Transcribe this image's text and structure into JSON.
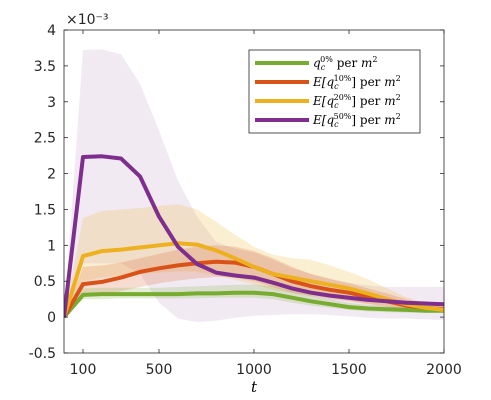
{
  "chart_data": {
    "type": "line",
    "xlabel": "t",
    "ylabel": "",
    "exponent_label": "×10⁻³",
    "xlim": [
      0,
      2000
    ],
    "ylim": [
      -0.5,
      4
    ],
    "xticks": [
      100,
      500,
      1000,
      1500,
      2000
    ],
    "yticks": [
      -0.5,
      0,
      0.5,
      1,
      1.5,
      2,
      2.5,
      3,
      3.5,
      4
    ],
    "grid": false,
    "legend_position": "top-right",
    "series": [
      {
        "name": "q_c^{0%} per m²",
        "legend_parts": [
          "q",
          "c",
          "0%",
          " per ",
          "m",
          "2"
        ],
        "color": "#77ac30",
        "x": [
          0,
          100,
          200,
          300,
          400,
          500,
          600,
          700,
          800,
          900,
          1000,
          1100,
          1200,
          1300,
          1400,
          1500,
          1600,
          1700,
          1800,
          1900,
          2000
        ],
        "y": [
          0,
          0.31,
          0.32,
          0.32,
          0.32,
          0.32,
          0.32,
          0.33,
          0.33,
          0.34,
          0.34,
          0.32,
          0.27,
          0.22,
          0.18,
          0.14,
          0.12,
          0.11,
          0.1,
          0.09,
          0.09
        ],
        "band_upper": [
          0,
          0.4,
          0.41,
          0.41,
          0.41,
          0.41,
          0.42,
          0.43,
          0.44,
          0.45,
          0.45,
          0.43,
          0.36,
          0.3,
          0.25,
          0.2,
          0.17,
          0.15,
          0.14,
          0.13,
          0.12
        ],
        "band_lower": [
          0,
          0.25,
          0.25,
          0.26,
          0.26,
          0.26,
          0.26,
          0.26,
          0.27,
          0.27,
          0.27,
          0.25,
          0.2,
          0.16,
          0.13,
          0.1,
          0.08,
          0.07,
          0.06,
          0.06,
          0.06
        ]
      },
      {
        "name": "E[q_c^{10%}] per m²",
        "legend_parts": [
          "E[q",
          "c",
          "10%",
          "] per ",
          "m",
          "2"
        ],
        "color": "#d95319",
        "x": [
          0,
          100,
          200,
          300,
          400,
          500,
          600,
          700,
          800,
          900,
          1000,
          1100,
          1200,
          1300,
          1400,
          1500,
          1600,
          1700,
          1800,
          1900,
          2000
        ],
        "y": [
          0,
          0.46,
          0.49,
          0.55,
          0.63,
          0.68,
          0.72,
          0.75,
          0.77,
          0.76,
          0.7,
          0.6,
          0.5,
          0.43,
          0.38,
          0.34,
          0.28,
          0.22,
          0.16,
          0.13,
          0.11
        ],
        "band_upper": [
          0,
          0.7,
          0.72,
          0.76,
          0.82,
          0.88,
          0.94,
          0.98,
          1.0,
          0.98,
          0.92,
          0.82,
          0.7,
          0.6,
          0.53,
          0.47,
          0.4,
          0.33,
          0.25,
          0.2,
          0.17
        ],
        "band_lower": [
          0,
          0.3,
          0.32,
          0.36,
          0.42,
          0.47,
          0.51,
          0.54,
          0.56,
          0.55,
          0.5,
          0.42,
          0.34,
          0.29,
          0.25,
          0.22,
          0.18,
          0.14,
          0.1,
          0.08,
          0.07
        ]
      },
      {
        "name": "E[q_c^{20%}] per m²",
        "legend_parts": [
          "E[q",
          "c",
          "20%",
          "] per ",
          "m",
          "2"
        ],
        "color": "#edb120",
        "x": [
          0,
          100,
          200,
          300,
          400,
          500,
          600,
          700,
          800,
          900,
          1000,
          1100,
          1200,
          1300,
          1400,
          1500,
          1600,
          1700,
          1800,
          1900,
          2000
        ],
        "y": [
          0,
          0.85,
          0.92,
          0.94,
          0.97,
          1.0,
          1.03,
          1.01,
          0.93,
          0.82,
          0.7,
          0.6,
          0.55,
          0.5,
          0.45,
          0.4,
          0.33,
          0.25,
          0.18,
          0.13,
          0.1
        ],
        "band_upper": [
          0,
          1.38,
          1.48,
          1.5,
          1.52,
          1.55,
          1.57,
          1.5,
          1.33,
          1.15,
          0.98,
          0.87,
          0.82,
          0.8,
          0.72,
          0.63,
          0.53,
          0.4,
          0.28,
          0.2,
          0.15
        ],
        "band_lower": [
          0,
          0.5,
          0.55,
          0.58,
          0.6,
          0.62,
          0.64,
          0.63,
          0.58,
          0.52,
          0.45,
          0.38,
          0.34,
          0.3,
          0.27,
          0.23,
          0.19,
          0.15,
          0.11,
          0.08,
          0.06
        ]
      },
      {
        "name": "E[q_c^{50%}] per m²",
        "legend_parts": [
          "E[q",
          "c",
          "50%",
          "] per ",
          "m",
          "2"
        ],
        "color": "#7e2f8e",
        "x": [
          0,
          100,
          200,
          300,
          400,
          500,
          600,
          700,
          800,
          900,
          1000,
          1100,
          1200,
          1300,
          1400,
          1500,
          1600,
          1700,
          1800,
          1900,
          2000
        ],
        "y": [
          0,
          2.23,
          2.24,
          2.21,
          1.96,
          1.4,
          0.98,
          0.74,
          0.62,
          0.58,
          0.55,
          0.48,
          0.4,
          0.34,
          0.3,
          0.27,
          0.24,
          0.22,
          0.2,
          0.19,
          0.18
        ],
        "band_upper": [
          0,
          3.72,
          3.73,
          3.66,
          3.25,
          2.6,
          1.9,
          1.4,
          1.05,
          0.95,
          0.9,
          0.8,
          0.68,
          0.6,
          0.54,
          0.48,
          0.44,
          0.42,
          0.42,
          0.42,
          0.42
        ],
        "band_lower": [
          0,
          0.75,
          0.75,
          0.75,
          0.6,
          0.2,
          -0.02,
          -0.07,
          -0.05,
          -0.01,
          0.02,
          0.03,
          0.04,
          0.04,
          0.03,
          0.01,
          -0.01,
          -0.02,
          -0.02,
          -0.03,
          -0.04
        ]
      }
    ]
  }
}
